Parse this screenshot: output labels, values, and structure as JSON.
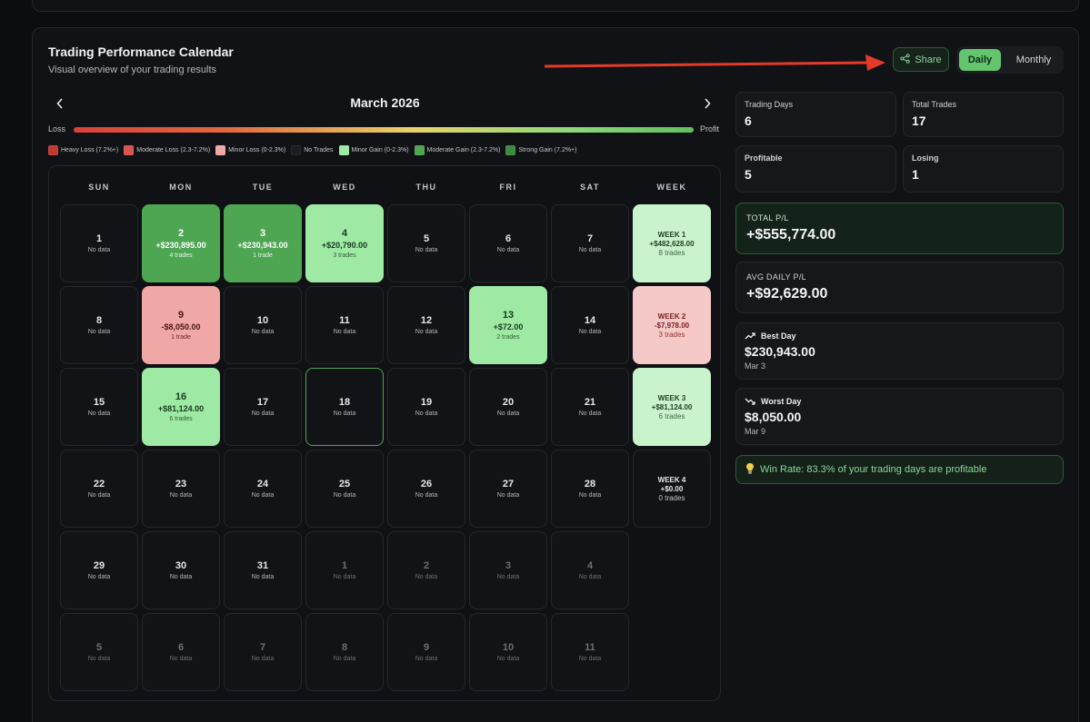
{
  "header": {
    "title": "Trading Performance Calendar",
    "subtitle": "Visual overview of your trading results",
    "share_label": "Share",
    "view_daily": "Daily",
    "view_monthly": "Monthly",
    "active_view": "Daily"
  },
  "calendar": {
    "month_title": "March 2026",
    "loss_label": "Loss",
    "profit_label": "Profit",
    "legend": [
      {
        "label": "Heavy Loss (7.2%+)",
        "color": "#c03a34"
      },
      {
        "label": "Moderate Loss (2.3-7.2%)",
        "color": "#d9534f"
      },
      {
        "label": "Minor Loss (0-2.3%)",
        "color": "#f0a8a6"
      },
      {
        "label": "No Trades",
        "color": "#1c1d21"
      },
      {
        "label": "Minor Gain (0-2.3%)",
        "color": "#9eeaa5"
      },
      {
        "label": "Moderate Gain (2.3-7.2%)",
        "color": "#4ea552"
      },
      {
        "label": "Strong Gain (7.2%+)",
        "color": "#3d8a41"
      }
    ],
    "weekdays": [
      "SUN",
      "MON",
      "TUE",
      "WED",
      "THU",
      "FRI",
      "SAT",
      "WEEK"
    ],
    "weeks": [
      {
        "days": [
          {
            "day": "1",
            "status": "No data"
          },
          {
            "day": "2",
            "amount": "+$230,895.00",
            "trades": "4 trades",
            "style": "strong"
          },
          {
            "day": "3",
            "amount": "+$230,943.00",
            "trades": "1 trade",
            "style": "strong"
          },
          {
            "day": "4",
            "amount": "+$20,790.00",
            "trades": "3 trades",
            "style": "minor"
          },
          {
            "day": "5",
            "status": "No data"
          },
          {
            "day": "6",
            "status": "No data"
          },
          {
            "day": "7",
            "status": "No data"
          }
        ],
        "summary": {
          "label": "WEEK 1",
          "amount": "+$482,628.00",
          "trades": "8 trades",
          "style": "gain"
        }
      },
      {
        "days": [
          {
            "day": "8",
            "status": "No data"
          },
          {
            "day": "9",
            "amount": "-$8,050.00",
            "trades": "1 trade",
            "style": "minorloss"
          },
          {
            "day": "10",
            "status": "No data"
          },
          {
            "day": "11",
            "status": "No data"
          },
          {
            "day": "12",
            "status": "No data"
          },
          {
            "day": "13",
            "amount": "+$72.00",
            "trades": "2 trades",
            "style": "minor"
          },
          {
            "day": "14",
            "status": "No data"
          }
        ],
        "summary": {
          "label": "WEEK 2",
          "amount": "-$7,978.00",
          "trades": "3 trades",
          "style": "loss"
        }
      },
      {
        "days": [
          {
            "day": "15",
            "status": "No data"
          },
          {
            "day": "16",
            "amount": "+$81,124.00",
            "trades": "6 trades",
            "style": "minor"
          },
          {
            "day": "17",
            "status": "No data"
          },
          {
            "day": "18",
            "status": "No data",
            "style": "today"
          },
          {
            "day": "19",
            "status": "No data"
          },
          {
            "day": "20",
            "status": "No data"
          },
          {
            "day": "21",
            "status": "No data"
          }
        ],
        "summary": {
          "label": "WEEK 3",
          "amount": "+$81,124.00",
          "trades": "6 trades",
          "style": "gain"
        }
      },
      {
        "days": [
          {
            "day": "22",
            "status": "No data"
          },
          {
            "day": "23",
            "status": "No data"
          },
          {
            "day": "24",
            "status": "No data"
          },
          {
            "day": "25",
            "status": "No data"
          },
          {
            "day": "26",
            "status": "No data"
          },
          {
            "day": "27",
            "status": "No data"
          },
          {
            "day": "28",
            "status": "No data"
          }
        ],
        "summary": {
          "label": "WEEK 4",
          "amount": "+$0.00",
          "trades": "0 trades",
          "style": "neutral"
        }
      },
      {
        "days": [
          {
            "day": "29",
            "status": "No data"
          },
          {
            "day": "30",
            "status": "No data"
          },
          {
            "day": "31",
            "status": "No data"
          },
          {
            "day": "1",
            "status": "No data",
            "style": "other"
          },
          {
            "day": "2",
            "status": "No data",
            "style": "other"
          },
          {
            "day": "3",
            "status": "No data",
            "style": "other"
          },
          {
            "day": "4",
            "status": "No data",
            "style": "other"
          }
        ]
      },
      {
        "days": [
          {
            "day": "5",
            "status": "No data",
            "style": "other"
          },
          {
            "day": "6",
            "status": "No data",
            "style": "other"
          },
          {
            "day": "7",
            "status": "No data",
            "style": "other"
          },
          {
            "day": "8",
            "status": "No data",
            "style": "other"
          },
          {
            "day": "9",
            "status": "No data",
            "style": "other"
          },
          {
            "day": "10",
            "status": "No data",
            "style": "other"
          },
          {
            "day": "11",
            "status": "No data",
            "style": "other"
          }
        ]
      }
    ]
  },
  "stats": {
    "trading_days_label": "Trading Days",
    "trading_days": "6",
    "total_trades_label": "Total Trades",
    "total_trades": "17",
    "profitable_label": "Profitable",
    "profitable": "5",
    "losing_label": "Losing",
    "losing": "1",
    "total_pl_label": "TOTAL P/L",
    "total_pl": "+$555,774.00",
    "avg_daily_label": "AVG DAILY P/L",
    "avg_daily": "+$92,629.00",
    "best_day_label": "Best Day",
    "best_day_value": "$230,943.00",
    "best_day_date": "Mar 3",
    "worst_day_label": "Worst Day",
    "worst_day_value": "$8,050.00",
    "worst_day_date": "Mar 9",
    "win_rate_text": "Win Rate: 83.3% of your trading days are profitable"
  }
}
